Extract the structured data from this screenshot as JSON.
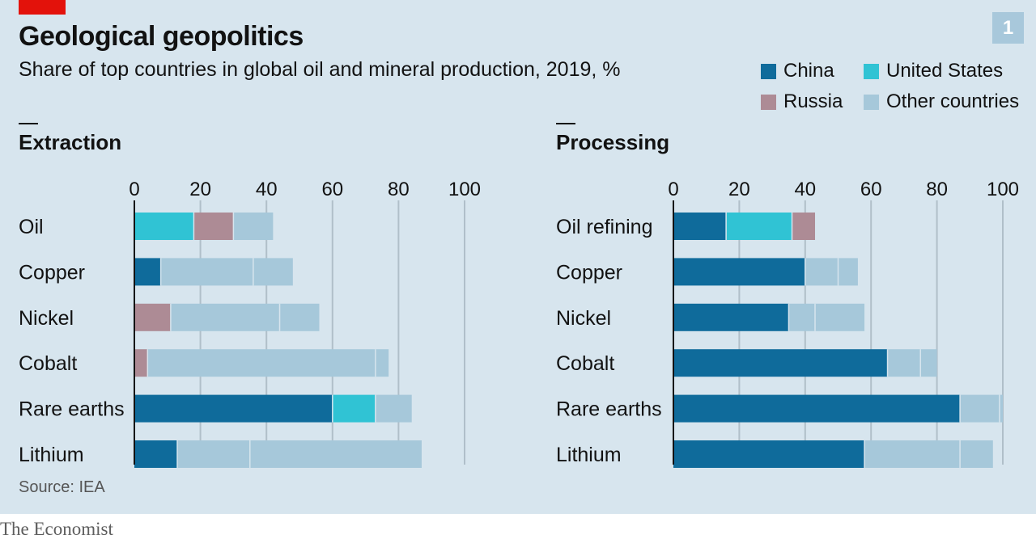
{
  "title": "Geological geopolitics",
  "subtitle": "Share of top countries in global oil and mineral production, 2019, %",
  "chart_number": "1",
  "source": "Source: IEA",
  "footer": "The Economist",
  "colors": {
    "China": "#0f6b9b",
    "United States": "#30c3d4",
    "Russia": "#ad8b95",
    "Other countries": "#a6c8da",
    "background": "#d7e5ee",
    "accent": "#e3120b"
  },
  "legend": [
    {
      "label": "China",
      "color": "#0f6b9b"
    },
    {
      "label": "United States",
      "color": "#30c3d4"
    },
    {
      "label": "Russia",
      "color": "#ad8b95"
    },
    {
      "label": "Other countries",
      "color": "#a6c8da"
    }
  ],
  "chart_data": [
    {
      "type": "bar",
      "orientation": "horizontal",
      "stacked": true,
      "title": "Extraction",
      "xlim": [
        0,
        100
      ],
      "ticks": [
        0,
        20,
        40,
        60,
        80,
        100
      ],
      "grid": true,
      "categories": [
        "Oil",
        "Copper",
        "Nickel",
        "Cobalt",
        "Rare earths",
        "Lithium"
      ],
      "bars": [
        [
          {
            "country": "United States",
            "value": 18
          },
          {
            "country": "Russia",
            "value": 12
          },
          {
            "country": "Other countries",
            "value": 12
          }
        ],
        [
          {
            "country": "China",
            "value": 8
          },
          {
            "country": "Other countries",
            "value": 28
          },
          {
            "country": "Other countries",
            "value": 12
          }
        ],
        [
          {
            "country": "Russia",
            "value": 11
          },
          {
            "country": "Other countries",
            "value": 33
          },
          {
            "country": "Other countries",
            "value": 12
          }
        ],
        [
          {
            "country": "Russia",
            "value": 4
          },
          {
            "country": "Other countries",
            "value": 69
          },
          {
            "country": "Other countries",
            "value": 4
          }
        ],
        [
          {
            "country": "China",
            "value": 60
          },
          {
            "country": "United States",
            "value": 13
          },
          {
            "country": "Other countries",
            "value": 11
          }
        ],
        [
          {
            "country": "China",
            "value": 13
          },
          {
            "country": "Other countries",
            "value": 22
          },
          {
            "country": "Other countries",
            "value": 52
          }
        ]
      ]
    },
    {
      "type": "bar",
      "orientation": "horizontal",
      "stacked": true,
      "title": "Processing",
      "xlim": [
        0,
        100
      ],
      "ticks": [
        0,
        20,
        40,
        60,
        80,
        100
      ],
      "grid": true,
      "categories": [
        "Oil refining",
        "Copper",
        "Nickel",
        "Cobalt",
        "Rare earths",
        "Lithium"
      ],
      "bars": [
        [
          {
            "country": "China",
            "value": 16
          },
          {
            "country": "United States",
            "value": 20
          },
          {
            "country": "Russia",
            "value": 7
          }
        ],
        [
          {
            "country": "China",
            "value": 40
          },
          {
            "country": "Other countries",
            "value": 10
          },
          {
            "country": "Other countries",
            "value": 6
          }
        ],
        [
          {
            "country": "China",
            "value": 35
          },
          {
            "country": "Other countries",
            "value": 8
          },
          {
            "country": "Other countries",
            "value": 15
          }
        ],
        [
          {
            "country": "China",
            "value": 65
          },
          {
            "country": "Other countries",
            "value": 10
          },
          {
            "country": "Other countries",
            "value": 5
          }
        ],
        [
          {
            "country": "China",
            "value": 87
          },
          {
            "country": "Other countries",
            "value": 12
          },
          {
            "country": "Other countries",
            "value": 1
          }
        ],
        [
          {
            "country": "China",
            "value": 58
          },
          {
            "country": "Other countries",
            "value": 29
          },
          {
            "country": "Other countries",
            "value": 10
          }
        ]
      ]
    }
  ]
}
